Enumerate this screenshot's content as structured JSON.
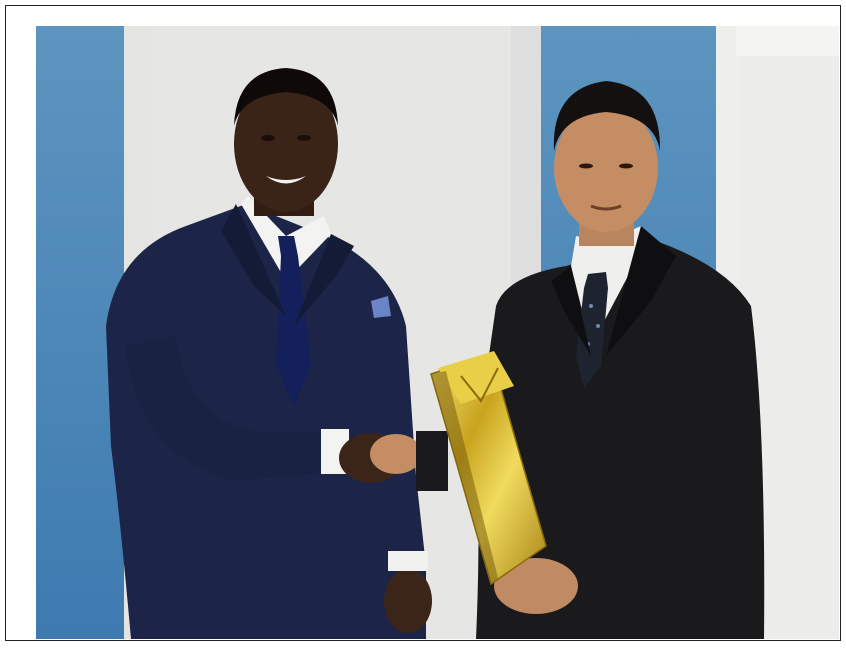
{
  "scene": {
    "subject": "handshake-gift-exchange",
    "colors": {
      "wall_blue": "#6a9cc4",
      "wall_white": "#e8e7e6",
      "door_frame": "#f1f1ef",
      "suit_navy": "#1b2445",
      "suit_black": "#1a1a1d",
      "gift_gold": "#d8b92b",
      "skin_dark": "#3b2418",
      "skin_light": "#c28c63",
      "shirt": "#f3f3f1"
    }
  }
}
